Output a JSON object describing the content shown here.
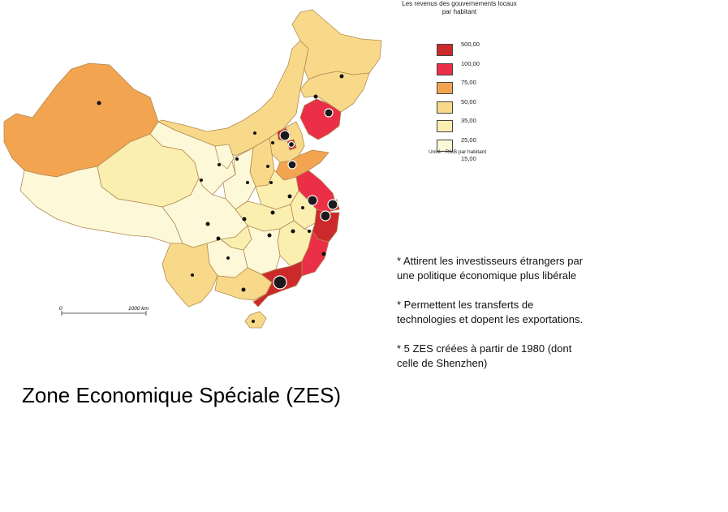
{
  "legend": {
    "title_line1": "Les revenus des gouvernements locaux",
    "title_line2": "par habitant",
    "classes": [
      {
        "value": "500,00",
        "color": "#cc2a2a"
      },
      {
        "value": "100,00",
        "color": "#ea2f47"
      },
      {
        "value": "75,00",
        "color": "#f3a450"
      },
      {
        "value": "50,00",
        "color": "#f8d98a"
      },
      {
        "value": "35,00",
        "color": "#fbefb0"
      },
      {
        "value": "25,00",
        "color": "#fdf9d8"
      },
      {
        "value": "15,00",
        "color": ""
      }
    ],
    "unit": "Unité : RMB par habitant"
  },
  "scale": {
    "start": "0",
    "end": "1000 km"
  },
  "notes": [
    "* Attirent les investisseurs étrangers par une politique économique plus libérale",
    "* Permettent les transferts de technologies et dopent les exportations.",
    "* 5 ZES créées à partir de 1980 (dont celle de Shenzhen)"
  ],
  "title": "Zone Economique Spéciale (ZES)",
  "colors": {
    "class_500": "#cc2a2a",
    "class_100": "#ea2f47",
    "class_75": "#f3a450",
    "class_50": "#f8d98a",
    "class_35": "#fbefb0",
    "class_25": "#fdf9d8",
    "border": "#b28a52"
  }
}
